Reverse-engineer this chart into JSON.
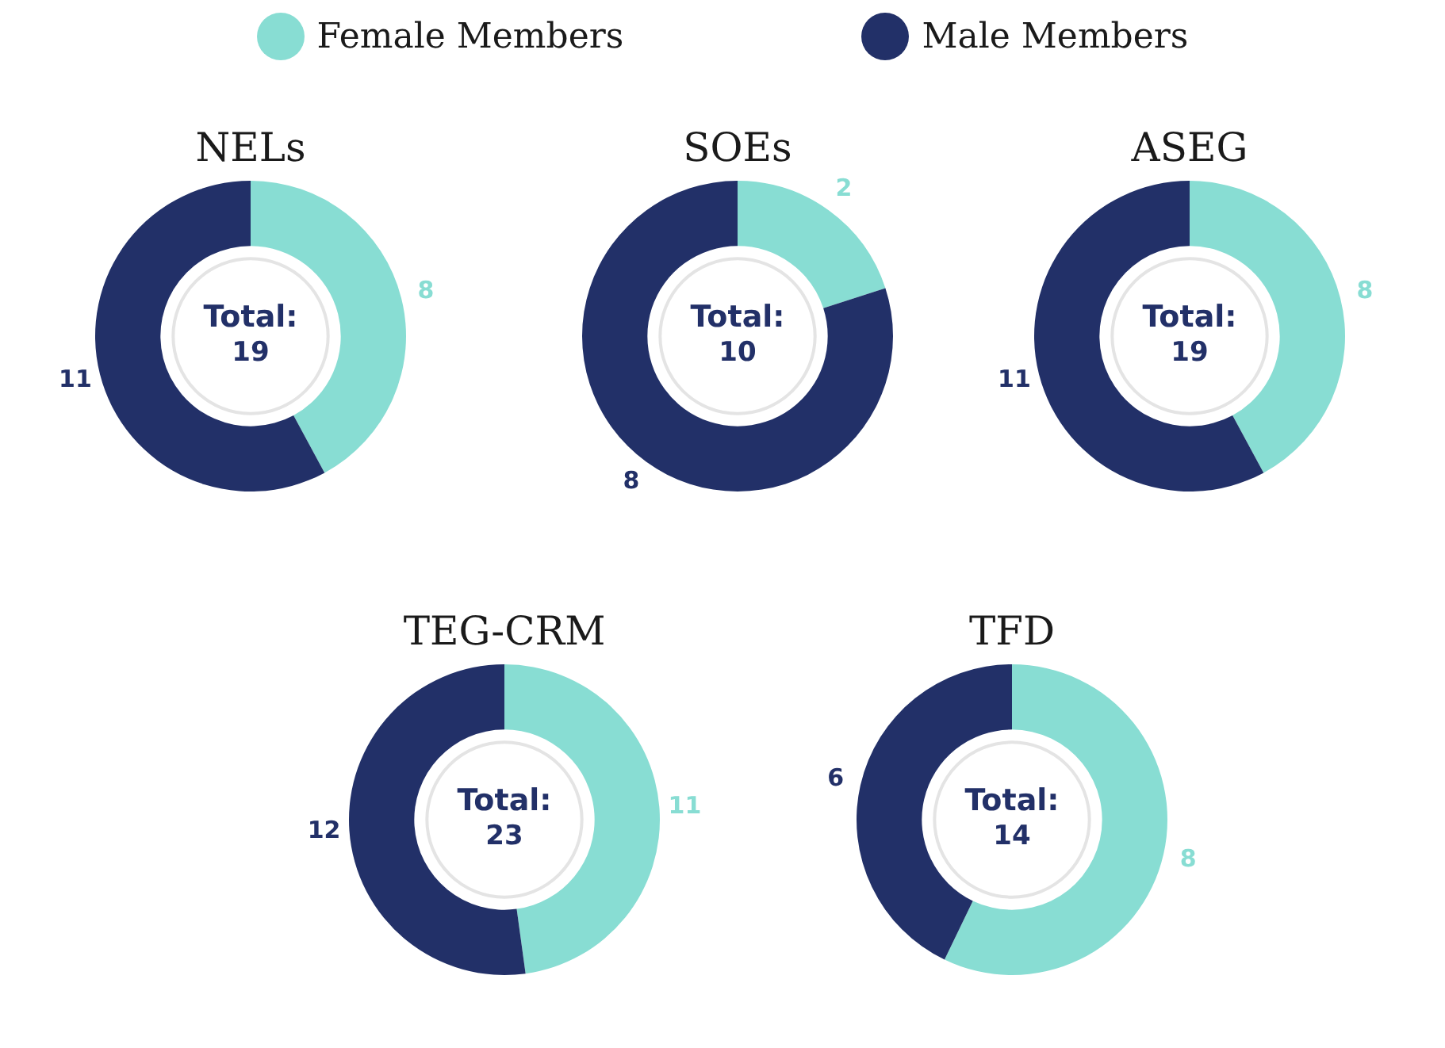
{
  "chart_data": [
    {
      "type": "donut",
      "title": "NELs",
      "categories": [
        "Female Members",
        "Male Members"
      ],
      "values": [
        8,
        11
      ],
      "colors": [
        "#88ddd3",
        "#223068"
      ],
      "data_labels": true,
      "legend": "top",
      "annotations": [
        "Total: 19"
      ]
    },
    {
      "type": "donut",
      "title": "SOEs",
      "categories": [
        null,
        null
      ],
      "values": [
        2,
        8
      ],
      "colors": [
        "#88ddd3",
        "#223068"
      ],
      "data_labels": true,
      "annotations": [
        "Total: 10"
      ]
    },
    {
      "type": "donut",
      "title": "ASEG",
      "categories": [
        null,
        null
      ],
      "values": [
        8,
        11
      ],
      "colors": [
        "#88ddd3",
        "#223068"
      ],
      "data_labels": true,
      "annotations": [
        "Total: 19"
      ]
    },
    {
      "type": "donut",
      "title": "TEG-CRM",
      "categories": [
        null,
        null
      ],
      "values": [
        11,
        12
      ],
      "colors": [
        "#88ddd3",
        "#223068"
      ],
      "data_labels": true,
      "annotations": [
        "Total: 23"
      ]
    },
    {
      "type": "donut",
      "title": "TFD",
      "categories": [
        null,
        null
      ],
      "values": [
        8,
        6
      ],
      "colors": [
        "#88ddd3",
        "#223068"
      ],
      "data_labels": true,
      "annotations": [
        "Total: 14"
      ]
    }
  ]
}
